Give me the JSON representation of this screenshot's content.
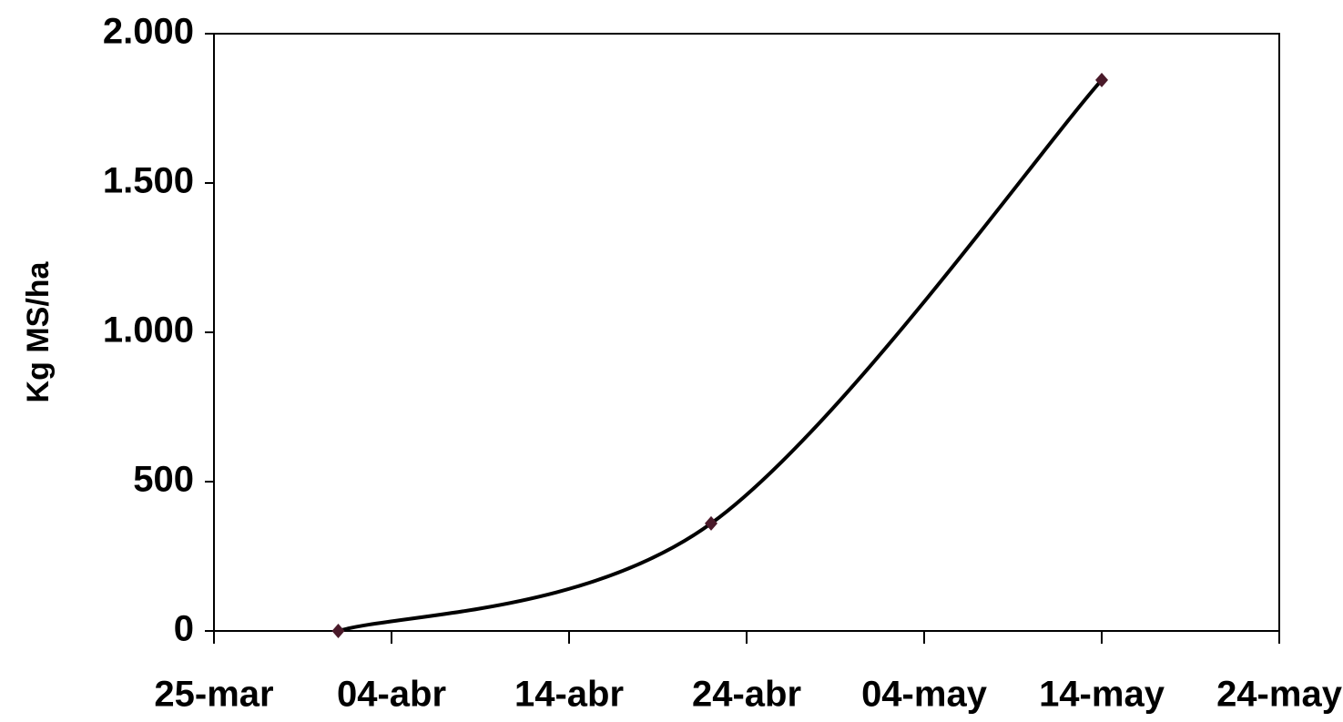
{
  "chart_data": {
    "type": "line",
    "y_label": "Kg MS/ha",
    "x": [
      91,
      112,
      134
    ],
    "series": [
      {
        "values": [
          0,
          360,
          1845
        ],
        "color": "#000000",
        "marker_color": "#4a1a2a"
      }
    ],
    "xlim": [
      84,
      144
    ],
    "xticks": [
      {
        "value": 84,
        "label": "25-mar"
      },
      {
        "value": 94,
        "label": "04-abr"
      },
      {
        "value": 104,
        "label": "14-abr"
      },
      {
        "value": 114,
        "label": "24-abr"
      },
      {
        "value": 124,
        "label": "04-may"
      },
      {
        "value": 134,
        "label": "14-may"
      },
      {
        "value": 144,
        "label": "24-may"
      }
    ],
    "ylim": [
      0,
      2000
    ],
    "yticks": [
      0,
      500,
      {
        "value": 1000,
        "label": "1.000"
      },
      {
        "value": 1500,
        "label": "1.500"
      },
      {
        "value": 2000,
        "label": "2.000"
      }
    ],
    "grid": false
  }
}
